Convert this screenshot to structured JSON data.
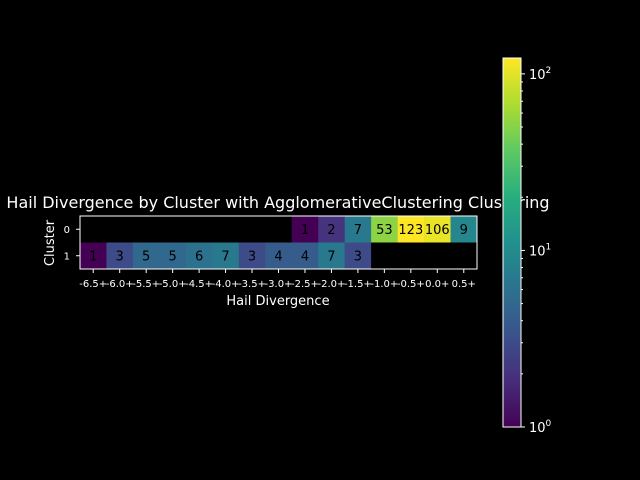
{
  "chart_data": {
    "type": "heatmap",
    "title": "Hail Divergence by Cluster with AgglomerativeClustering Clustering",
    "xlabel": "Hail Divergence",
    "ylabel": "Cluster",
    "x_categories": [
      "-6.5+",
      "-6.0+",
      "-5.5+",
      "-5.0+",
      "-4.5+",
      "-4.0+",
      "-3.5+",
      "-3.0+",
      "-2.5+",
      "-2.0+",
      "-1.5+",
      "-1.0+",
      "-0.5+",
      "0.0+",
      "0.5+"
    ],
    "y_categories": [
      "0",
      "1"
    ],
    "values": [
      [
        null,
        null,
        null,
        null,
        null,
        null,
        null,
        null,
        1,
        2,
        7,
        53,
        123,
        106,
        9
      ],
      [
        1,
        3,
        5,
        5,
        6,
        7,
        3,
        4,
        4,
        7,
        3,
        null,
        null,
        null,
        null
      ]
    ],
    "color_scale": "log",
    "colormap": "viridis",
    "colorbar_range": [
      1,
      123
    ],
    "colorbar_ticks": [
      {
        "value": 1,
        "base": "10",
        "exp": "0"
      },
      {
        "value": 10,
        "base": "10",
        "exp": "1"
      },
      {
        "value": 100,
        "base": "10",
        "exp": "2"
      }
    ],
    "missing_color": "#000000"
  }
}
